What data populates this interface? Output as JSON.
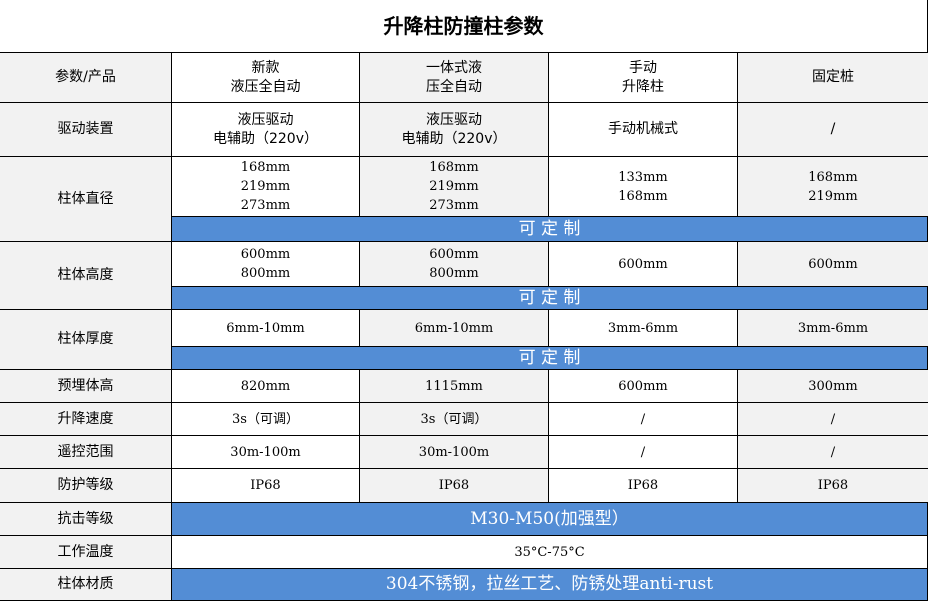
{
  "title": "升降柱防撞柱参数",
  "colors": {
    "banner": "#538dd5",
    "label_bg": "#f2f2f2"
  },
  "header": {
    "label": "参数/产品",
    "products": [
      [
        "新款",
        "液压全自动"
      ],
      [
        "一体式液",
        "压全自动"
      ],
      [
        "手动",
        "升降柱"
      ],
      [
        "固定桩"
      ]
    ]
  },
  "rows": {
    "drive": {
      "label": "驱动装置",
      "values": [
        [
          "液压驱动",
          "电辅助（220v）"
        ],
        [
          "液压驱动",
          "电辅助（220v）"
        ],
        [
          "手动机械式"
        ],
        [
          "/"
        ]
      ]
    },
    "diameter": {
      "label": "柱体直径",
      "values": [
        [
          "168mm",
          "219mm",
          "273mm"
        ],
        [
          "168mm",
          "219mm",
          "273mm"
        ],
        [
          "133mm",
          "168mm"
        ],
        [
          "168mm",
          "219mm"
        ]
      ],
      "note": "可 定 制"
    },
    "height": {
      "label": "柱体高度",
      "values": [
        [
          "600mm",
          "800mm"
        ],
        [
          "600mm",
          "800mm"
        ],
        [
          "600mm"
        ],
        [
          "600mm"
        ]
      ],
      "note": "可 定 制"
    },
    "thickness": {
      "label": "柱体厚度",
      "values": [
        [
          "6mm-10mm"
        ],
        [
          "6mm-10mm"
        ],
        [
          "3mm-6mm"
        ],
        [
          "3mm-6mm"
        ]
      ],
      "note": "可 定 制"
    },
    "embed": {
      "label": "预埋体高",
      "values": [
        [
          "820mm"
        ],
        [
          "1115mm"
        ],
        [
          "600mm"
        ],
        [
          "300mm"
        ]
      ]
    },
    "speed": {
      "label": "升降速度",
      "values": [
        [
          "3s（可调）"
        ],
        [
          "3s（可调）"
        ],
        [
          "/"
        ],
        [
          "/"
        ]
      ]
    },
    "remote": {
      "label": "遥控范围",
      "values": [
        [
          "30m-100m"
        ],
        [
          "30m-100m"
        ],
        [
          "/"
        ],
        [
          "/"
        ]
      ]
    },
    "protection": {
      "label": "防护等级",
      "values": [
        [
          "IP68"
        ],
        [
          "IP68"
        ],
        [
          "IP68"
        ],
        [
          "IP68"
        ]
      ]
    },
    "impact": {
      "label": "抗击等级",
      "span": "M30-M50(加强型）"
    },
    "temperature": {
      "label": "工作温度",
      "span": "35°C-75°C"
    },
    "material": {
      "label": "柱体材质",
      "span": "304不锈钢，拉丝工艺、防锈处理anti-rust"
    }
  }
}
